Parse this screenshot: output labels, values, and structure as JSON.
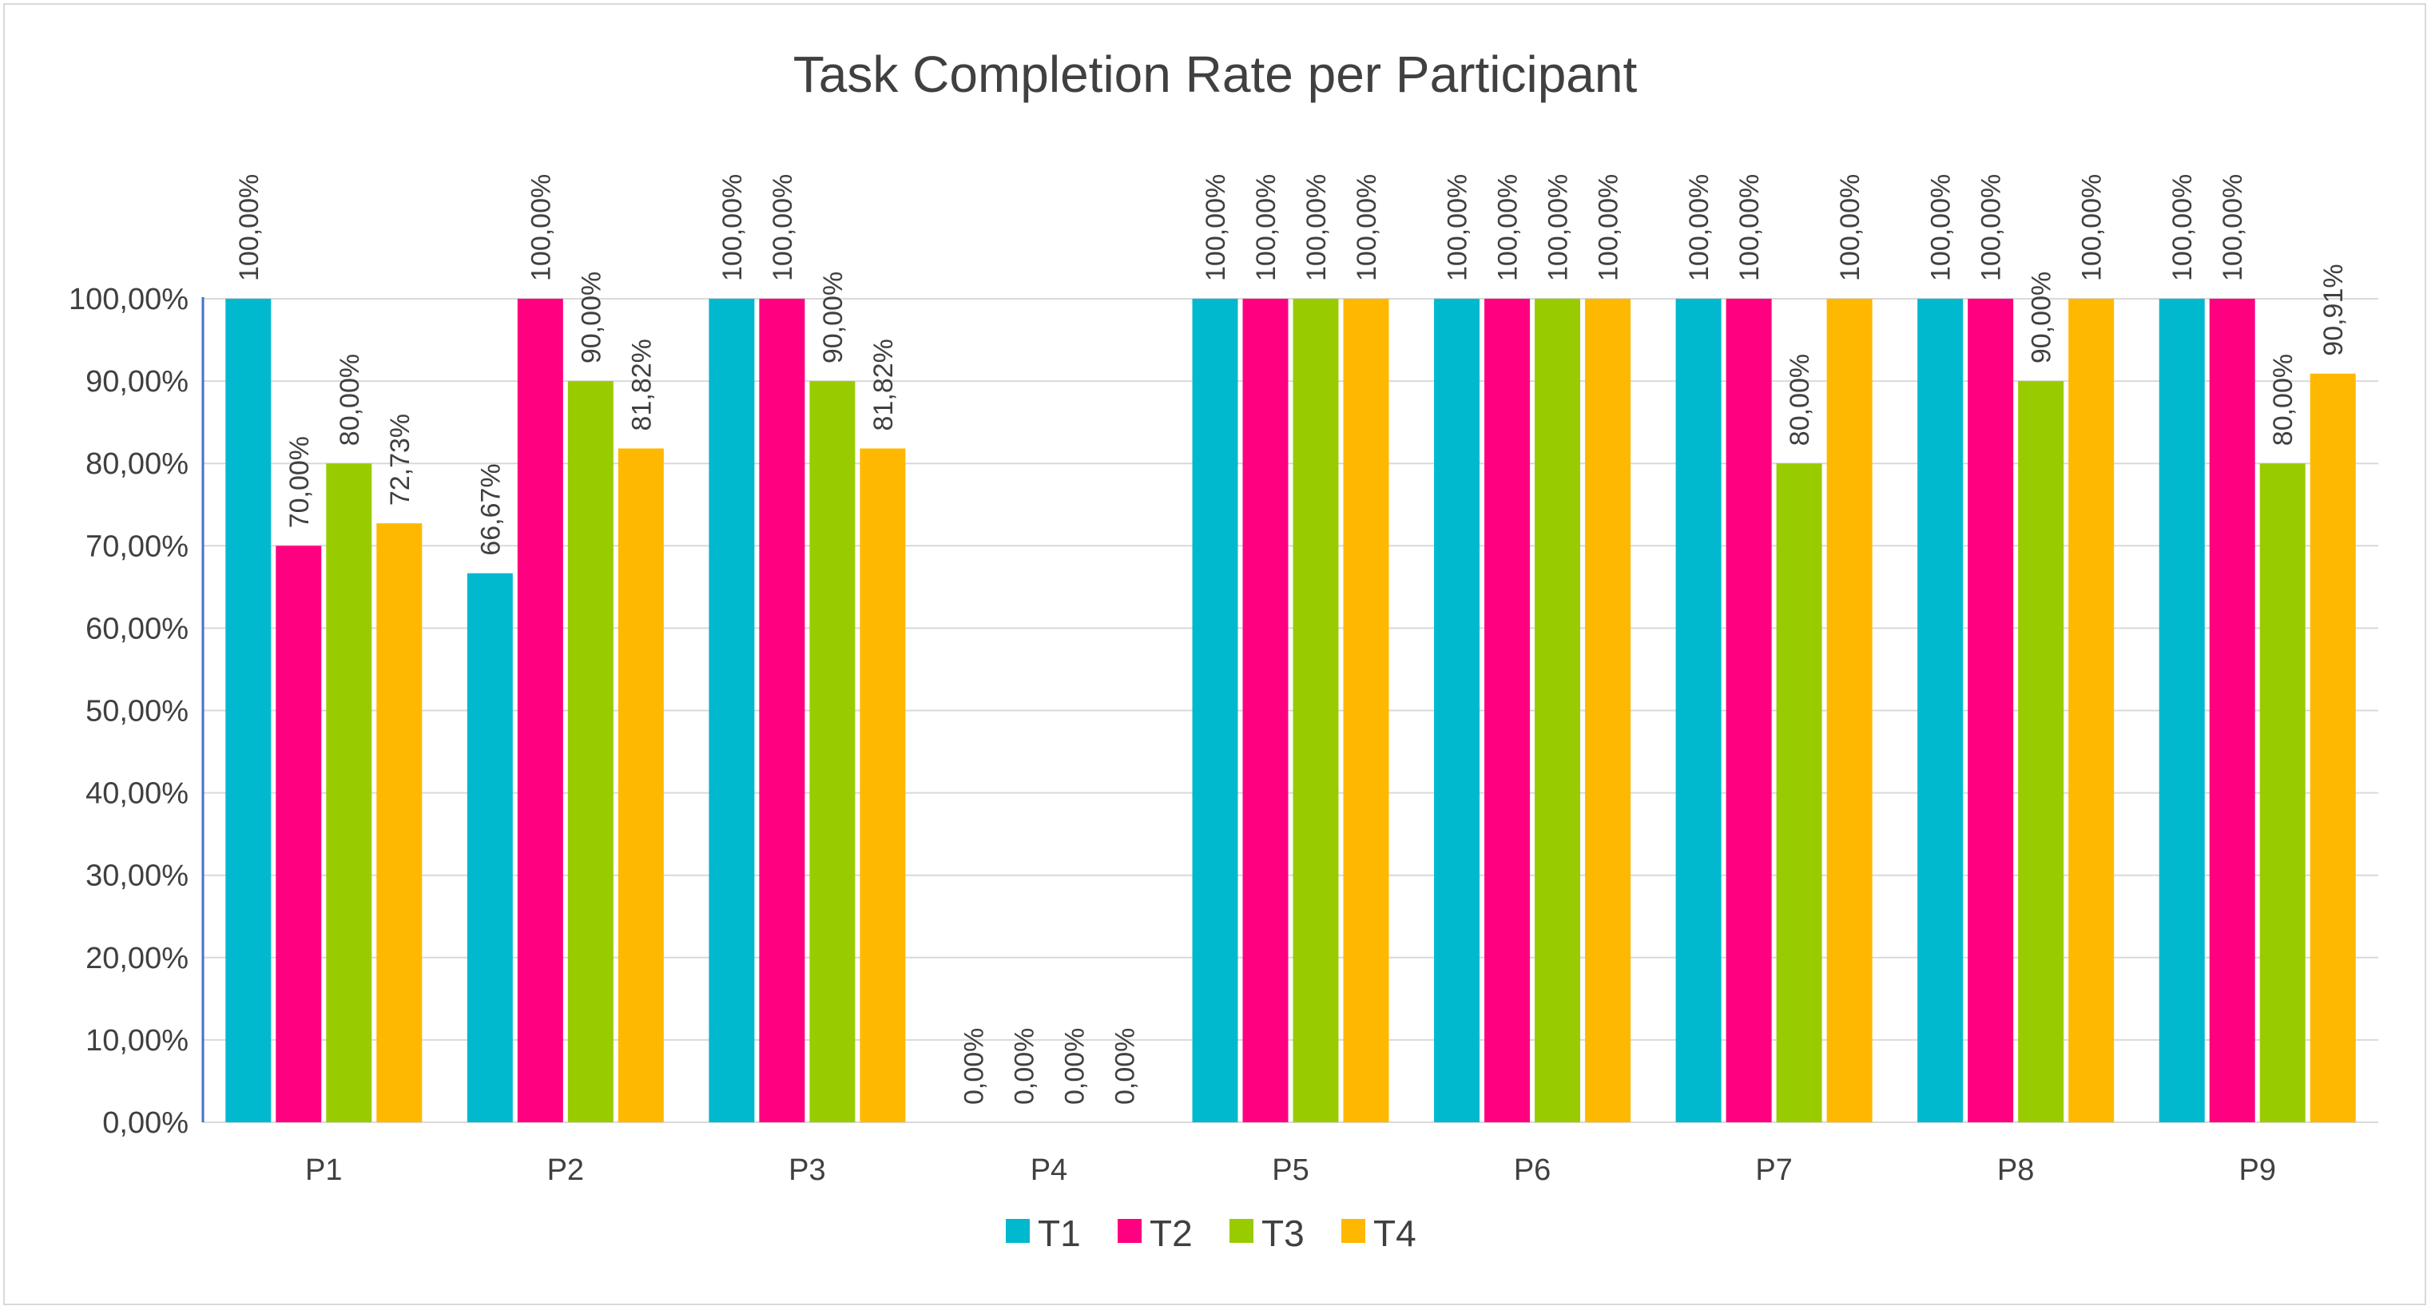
{
  "chart_data": {
    "type": "bar",
    "title": "Task Completion Rate per Participant",
    "categories": [
      "P1",
      "P2",
      "P3",
      "P4",
      "P5",
      "P6",
      "P7",
      "P8",
      "P9"
    ],
    "series": [
      {
        "name": "T1",
        "color": "#00b9cf",
        "values": [
          100,
          66.67,
          100,
          0,
          100,
          100,
          100,
          100,
          100
        ],
        "labels": [
          "100,00%",
          "66,67%",
          "100,00%",
          "0,00%",
          "100,00%",
          "100,00%",
          "100,00%",
          "100,00%",
          "100,00%"
        ]
      },
      {
        "name": "T2",
        "color": "#ff0080",
        "values": [
          70,
          100,
          100,
          0,
          100,
          100,
          100,
          100,
          100
        ],
        "labels": [
          "70,00%",
          "100,00%",
          "100,00%",
          "0,00%",
          "100,00%",
          "100,00%",
          "100,00%",
          "100,00%",
          "100,00%"
        ]
      },
      {
        "name": "T3",
        "color": "#99cc00",
        "values": [
          80,
          90,
          90,
          0,
          100,
          100,
          80,
          90,
          80
        ],
        "labels": [
          "80,00%",
          "90,00%",
          "90,00%",
          "0,00%",
          "100,00%",
          "100,00%",
          "80,00%",
          "90,00%",
          "80,00%"
        ]
      },
      {
        "name": "T4",
        "color": "#ffb800",
        "values": [
          72.73,
          81.82,
          81.82,
          0,
          100,
          100,
          100,
          100,
          90.91
        ],
        "labels": [
          "72,73%",
          "81,82%",
          "81,82%",
          "0,00%",
          "100,00%",
          "100,00%",
          "100,00%",
          "100,00%",
          "90,91%"
        ]
      }
    ],
    "ylim": [
      0,
      100
    ],
    "yticks": [
      0,
      10,
      20,
      30,
      40,
      50,
      60,
      70,
      80,
      90,
      100
    ],
    "ytick_labels": [
      "0,00%",
      "10,00%",
      "20,00%",
      "30,00%",
      "40,00%",
      "50,00%",
      "60,00%",
      "70,00%",
      "80,00%",
      "90,00%",
      "100,00%"
    ],
    "grid": true,
    "legend_position": "bottom",
    "axis_color": "#4472c4",
    "grid_color": "#d9d9d9"
  }
}
